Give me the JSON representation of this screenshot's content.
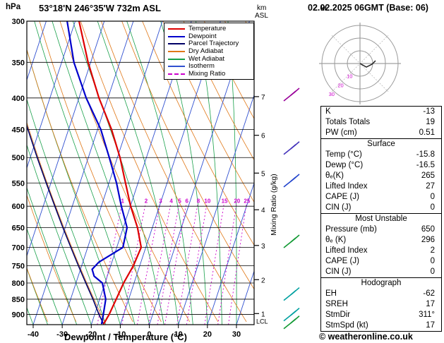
{
  "header": {
    "station": "53°18'N 246°35'W 732m ASL",
    "datetime": "02.02.2025 06GMT (Base: 06)"
  },
  "axes_labels": {
    "pressure": "hPa"
  },
  "legend": {
    "items": [
      {
        "label": "Temperature",
        "color": "#dd0000",
        "style": "solid"
      },
      {
        "label": "Dewpoint",
        "color": "#0000cc",
        "style": "solid"
      },
      {
        "label": "Parcel Trajectory",
        "color": "#000066",
        "style": "solid"
      },
      {
        "label": "Dry Adiabat",
        "color": "#e07818",
        "style": "solid"
      },
      {
        "label": "Wet Adiabat",
        "color": "#18a04a",
        "style": "solid"
      },
      {
        "label": "Isotherm",
        "color": "#3050d0",
        "style": "solid"
      },
      {
        "label": "Mixing Ratio",
        "color": "#cc00cc",
        "style": "dashed"
      }
    ]
  },
  "hodograph": {
    "unit": "kt",
    "rings": [
      10,
      20,
      30
    ],
    "ring_color": "#999999",
    "label_color": "#cc00cc",
    "trace": [
      [
        0,
        0
      ],
      [
        9,
        5
      ],
      [
        17,
        1
      ],
      [
        22,
        -4
      ]
    ]
  },
  "indices": {
    "sections": [
      {
        "title": "",
        "rows": [
          [
            "K",
            "-13"
          ],
          [
            "Totals Totals",
            "19"
          ],
          [
            "PW (cm)",
            "0.51"
          ]
        ]
      },
      {
        "title": "Surface",
        "rows": [
          [
            "Temp (°C)",
            "-15.8"
          ],
          [
            "Dewp (°C)",
            "-16.5"
          ],
          [
            "θₑ(K)",
            "265"
          ],
          [
            "Lifted Index",
            "27"
          ],
          [
            "CAPE (J)",
            "0"
          ],
          [
            "CIN (J)",
            "0"
          ]
        ]
      },
      {
        "title": "Most Unstable",
        "rows": [
          [
            "Pressure (mb)",
            "650"
          ],
          [
            "θₑ (K)",
            "296"
          ],
          [
            "Lifted Index",
            "2"
          ],
          [
            "CAPE (J)",
            "0"
          ],
          [
            "CIN (J)",
            "0"
          ]
        ]
      },
      {
        "title": "Hodograph",
        "rows": [
          [
            "EH",
            "-62"
          ],
          [
            "SREH",
            "17"
          ],
          [
            "StmDir",
            "311°"
          ],
          [
            "StmSpd (kt)",
            "17"
          ]
        ]
      }
    ]
  },
  "copyright": "© weatheronline.co.uk",
  "chart_data": {
    "type": "skewt-logp",
    "pressure_axis": {
      "unit": "hPa",
      "top": 300,
      "bottom": 935,
      "ticks": [
        300,
        350,
        400,
        450,
        500,
        550,
        600,
        650,
        700,
        750,
        800,
        850,
        900
      ]
    },
    "temp_axis": {
      "label": "Dewpoint / Temperature (°C)",
      "ticks": [
        -40,
        -30,
        -20,
        -10,
        0,
        10,
        20,
        30
      ]
    },
    "km_axis": {
      "label_line1": "km",
      "label_line2": "ASL",
      "levels": [
        {
          "km": 1,
          "p": 897
        },
        {
          "km": 2,
          "p": 790
        },
        {
          "km": 3,
          "p": 695
        },
        {
          "km": 4,
          "p": 608
        },
        {
          "km": 5,
          "p": 530
        },
        {
          "km": 6,
          "p": 460
        },
        {
          "km": 7,
          "p": 398
        }
      ],
      "lcl": {
        "label": "LCL",
        "p": 921
      }
    },
    "mixing_ratio": {
      "label": "Mixing Ratio (g/kg)",
      "values": [
        1,
        2,
        3,
        4,
        5,
        6,
        8,
        10,
        15,
        20,
        25
      ],
      "label_pressure": 588,
      "top_pressure": 595,
      "color": "#cc00cc"
    },
    "background": {
      "isotherm_color": "#3050d0",
      "isotherm_step": 10,
      "dry_adiabat_color": "#e07818",
      "dry_adiabat_step": 10,
      "wet_adiabat_color": "#18a04a",
      "wet_adiabat_step": 5,
      "grid_color": "#000000"
    },
    "series": {
      "temperature": {
        "name": "Temperature",
        "color": "#dd0000",
        "points": [
          [
            933,
            -15.8
          ],
          [
            900,
            -15
          ],
          [
            850,
            -14.3
          ],
          [
            800,
            -13.6
          ],
          [
            750,
            -12.2
          ],
          [
            700,
            -11.6
          ],
          [
            650,
            -15.1
          ],
          [
            600,
            -19.9
          ],
          [
            550,
            -24.3
          ],
          [
            500,
            -29.1
          ],
          [
            450,
            -35.2
          ],
          [
            400,
            -43.1
          ],
          [
            350,
            -50.9
          ],
          [
            300,
            -58.7
          ]
        ]
      },
      "dewpoint": {
        "name": "Dewpoint",
        "color": "#0000cc",
        "points": [
          [
            933,
            -16.5
          ],
          [
            900,
            -17
          ],
          [
            850,
            -17.9
          ],
          [
            800,
            -20.9
          ],
          [
            780,
            -24.5
          ],
          [
            760,
            -26
          ],
          [
            740,
            -24.5
          ],
          [
            700,
            -17.9
          ],
          [
            650,
            -18.7
          ],
          [
            600,
            -23.1
          ],
          [
            550,
            -27.4
          ],
          [
            500,
            -32.8
          ],
          [
            450,
            -38.9
          ],
          [
            400,
            -47.5
          ],
          [
            350,
            -55.8
          ],
          [
            300,
            -62.8
          ]
        ]
      },
      "parcel": {
        "name": "Parcel Trajectory",
        "color": "#000066",
        "points": [
          [
            933,
            -15.8
          ],
          [
            900,
            -18.5
          ],
          [
            850,
            -22.3
          ],
          [
            800,
            -26.6
          ],
          [
            750,
            -31.1
          ],
          [
            700,
            -35.8
          ],
          [
            650,
            -40.8
          ],
          [
            600,
            -46
          ],
          [
            550,
            -51.6
          ],
          [
            500,
            -57.6
          ],
          [
            450,
            -64
          ],
          [
            415,
            -68.7
          ]
        ]
      }
    },
    "wind_barbs": [
      {
        "p": 397,
        "color": "#990099"
      },
      {
        "p": 485,
        "color": "#4433bb"
      },
      {
        "p": 548,
        "color": "#2244cc"
      },
      {
        "p": 688,
        "color": "#119933"
      },
      {
        "p": 838,
        "color": "#00a0a0"
      },
      {
        "p": 905,
        "color": "#00a0a0"
      },
      {
        "p": 932,
        "color": "#119933"
      }
    ]
  }
}
